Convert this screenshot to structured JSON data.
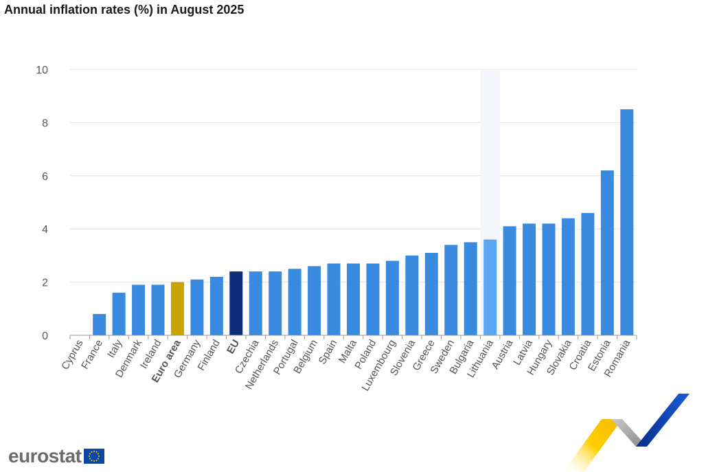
{
  "title": "Annual inflation rates (%) in August 2025",
  "logo_text": "eurostat",
  "chart_data": {
    "type": "bar",
    "title": "Annual inflation rates (%) in August 2025",
    "xlabel": "",
    "ylabel": "",
    "ylim": [
      0,
      10
    ],
    "yticks": [
      0,
      2,
      4,
      6,
      8,
      10
    ],
    "grid": true,
    "categories": [
      "Cyprus",
      "France",
      "Italy",
      "Denmark",
      "Ireland",
      "Euro area",
      "Germany",
      "Finland",
      "EU",
      "Czechia",
      "Netherlands",
      "Portugal",
      "Belgium",
      "Spain",
      "Malta",
      "Poland",
      "Luxembourg",
      "Slovenia",
      "Greece",
      "Sweden",
      "Bulgaria",
      "Lithuania",
      "Austria",
      "Latvia",
      "Hungary",
      "Slovakia",
      "Croatia",
      "Estonia",
      "Romania"
    ],
    "values": [
      0.0,
      0.8,
      1.6,
      1.9,
      1.9,
      2.0,
      2.1,
      2.2,
      2.4,
      2.4,
      2.4,
      2.5,
      2.6,
      2.7,
      2.7,
      2.7,
      2.8,
      3.0,
      3.1,
      3.4,
      3.5,
      3.6,
      4.1,
      4.2,
      4.2,
      4.4,
      4.6,
      6.2,
      8.5
    ],
    "bold_categories": [
      "Euro area",
      "EU"
    ],
    "highlighted_category": "Lithuania",
    "colors": {
      "default": "#3a8be0",
      "Euro area": "#c9a300",
      "EU": "#0e2d78",
      "Lithuania": "#5aa6f0",
      "highlight_band": "#f4f6fc",
      "grid": "#e3e3e3",
      "axis": "#999999"
    }
  }
}
